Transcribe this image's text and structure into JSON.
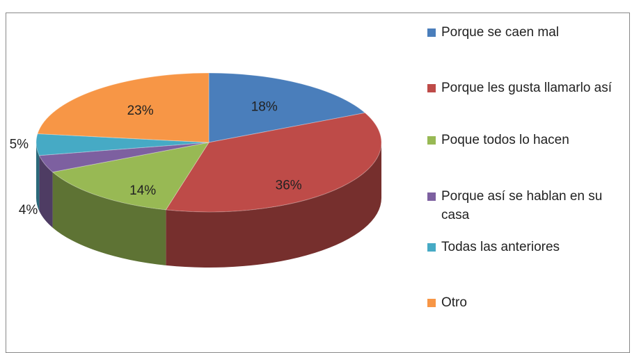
{
  "chart_data": {
    "type": "pie3d",
    "categories": [
      "Porque se caen mal",
      "Porque les gusta llamarlo así",
      "Poque todos lo hacen",
      "Porque así se hablan en su casa",
      "Todas las anteriores",
      "Otro"
    ],
    "values": [
      18,
      36,
      14,
      4,
      5,
      23
    ],
    "value_labels": [
      "18%",
      "36%",
      "14%",
      "4%",
      "5%",
      "23%"
    ],
    "colors": [
      "#4a7ebb",
      "#be4b48",
      "#98b954",
      "#7d60a0",
      "#46aac5",
      "#f79646"
    ],
    "legend": "right"
  }
}
